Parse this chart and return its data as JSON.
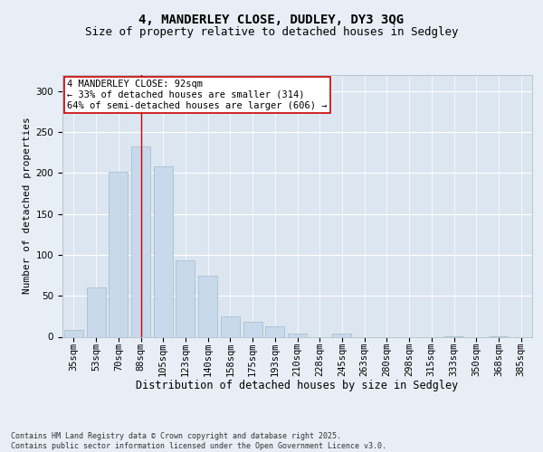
{
  "title": "4, MANDERLEY CLOSE, DUDLEY, DY3 3QG",
  "subtitle": "Size of property relative to detached houses in Sedgley",
  "xlabel": "Distribution of detached houses by size in Sedgley",
  "ylabel": "Number of detached properties",
  "categories": [
    "35sqm",
    "53sqm",
    "70sqm",
    "88sqm",
    "105sqm",
    "123sqm",
    "140sqm",
    "158sqm",
    "175sqm",
    "193sqm",
    "210sqm",
    "228sqm",
    "245sqm",
    "263sqm",
    "280sqm",
    "298sqm",
    "315sqm",
    "333sqm",
    "350sqm",
    "368sqm",
    "385sqm"
  ],
  "values": [
    8,
    60,
    201,
    232,
    208,
    93,
    74,
    25,
    18,
    13,
    4,
    0,
    4,
    0,
    0,
    0,
    0,
    1,
    0,
    1,
    0
  ],
  "bar_color": "#c9d9ec",
  "bar_edge_color": "#aabfcf",
  "vline_index": 3,
  "vline_color": "#cc0000",
  "annotation_text": "4 MANDERLEY CLOSE: 92sqm\n← 33% of detached houses are smaller (314)\n64% of semi-detached houses are larger (606) →",
  "annotation_box_color": "#ffffff",
  "annotation_box_edge": "#cc0000",
  "annotation_fontsize": 7.5,
  "ylim": [
    0,
    320
  ],
  "yticks": [
    0,
    50,
    100,
    150,
    200,
    250,
    300
  ],
  "title_fontsize": 10,
  "subtitle_fontsize": 9,
  "xlabel_fontsize": 8.5,
  "ylabel_fontsize": 8,
  "tick_fontsize": 7.5,
  "footer_text": "Contains HM Land Registry data © Crown copyright and database right 2025.\nContains public sector information licensed under the Open Government Licence v3.0.",
  "bg_color": "#e8eef5",
  "plot_bg_color": "#dce6f0"
}
